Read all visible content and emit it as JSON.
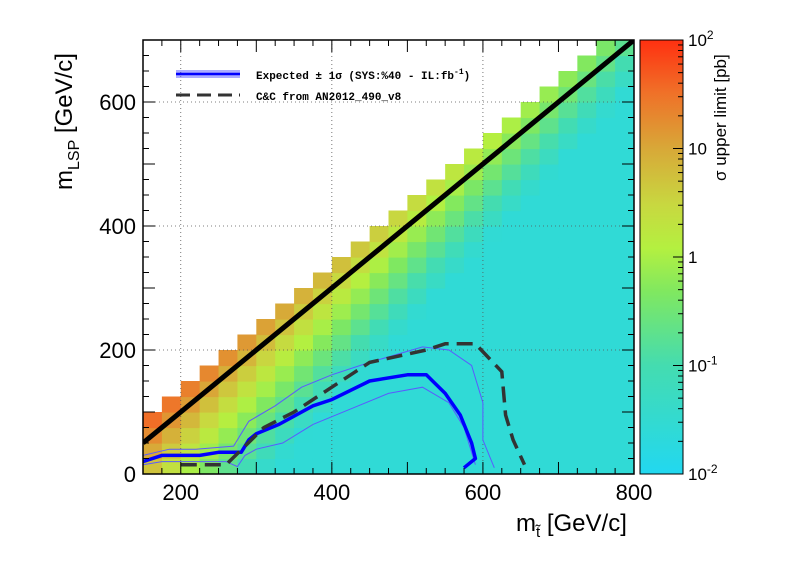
{
  "chart_data": {
    "type": "heatmap",
    "xlabel": "m",
    "xlabel_sub": "t̃",
    "xlabel_unit": " [GeV/c]",
    "ylabel": "m",
    "ylabel_sub": "LSP",
    "ylabel_unit": " [GeV/c]",
    "zlabel": "σ upper limit [pb]",
    "xlim": [
      150,
      800
    ],
    "ylim": [
      0,
      700
    ],
    "zlim": [
      0.01,
      100
    ],
    "zscale": "log",
    "x_ticks": [
      "200",
      "400",
      "600",
      "800"
    ],
    "y_ticks": [
      "0",
      "200",
      "400",
      "600"
    ],
    "z_ticks": [
      {
        "base": "10",
        "exp": "2",
        "value": 100
      },
      {
        "base": "10",
        "exp": "",
        "value": 10
      },
      {
        "base": "1",
        "exp": "",
        "value": 1
      },
      {
        "base": "10",
        "exp": "-1",
        "value": 0.1
      },
      {
        "base": "10",
        "exp": "-2",
        "value": 0.01
      }
    ],
    "grid": true,
    "legend_position": "top-left",
    "legend": [
      {
        "label": "Expected ± 1σ (SYS:%40 - IL:fb",
        "label_sup": "-1",
        "label_end": ")",
        "color": "#0000ff",
        "style": "solid-with-band"
      },
      {
        "label": "C&C from AN2012_490_v8",
        "color": "#333333",
        "style": "dashed"
      }
    ],
    "diagonal": {
      "from": [
        150,
        50
      ],
      "to": [
        800,
        700
      ],
      "color": "#000000"
    },
    "expected": [
      [
        150,
        20
      ],
      [
        175,
        30
      ],
      [
        225,
        30
      ],
      [
        250,
        35
      ],
      [
        280,
        35
      ],
      [
        290,
        55
      ],
      [
        300,
        65
      ],
      [
        330,
        80
      ],
      [
        375,
        110
      ],
      [
        400,
        120
      ],
      [
        450,
        150
      ],
      [
        500,
        160
      ],
      [
        525,
        160
      ],
      [
        550,
        130
      ],
      [
        570,
        95
      ],
      [
        585,
        50
      ],
      [
        590,
        25
      ],
      [
        575,
        10
      ]
    ],
    "expected_plus": [
      [
        150,
        15
      ],
      [
        175,
        20
      ],
      [
        225,
        20
      ],
      [
        260,
        20
      ],
      [
        275,
        12
      ],
      [
        285,
        30
      ],
      [
        300,
        40
      ],
      [
        335,
        50
      ],
      [
        375,
        80
      ],
      [
        425,
        105
      ],
      [
        475,
        130
      ],
      [
        520,
        140
      ],
      [
        555,
        115
      ],
      [
        575,
        75
      ],
      [
        590,
        15
      ]
    ],
    "expected_minus": [
      [
        150,
        30
      ],
      [
        185,
        40
      ],
      [
        220,
        40
      ],
      [
        270,
        45
      ],
      [
        290,
        85
      ],
      [
        325,
        110
      ],
      [
        360,
        140
      ],
      [
        400,
        160
      ],
      [
        450,
        180
      ],
      [
        520,
        205
      ],
      [
        555,
        200
      ],
      [
        585,
        175
      ],
      [
        600,
        115
      ],
      [
        600,
        55
      ],
      [
        615,
        10
      ]
    ],
    "candc": [
      [
        200,
        15
      ],
      [
        260,
        15
      ],
      [
        285,
        45
      ],
      [
        310,
        75
      ],
      [
        350,
        100
      ],
      [
        400,
        140
      ],
      [
        450,
        180
      ],
      [
        525,
        200
      ],
      [
        550,
        210
      ],
      [
        590,
        210
      ],
      [
        625,
        165
      ],
      [
        630,
        95
      ],
      [
        640,
        55
      ],
      [
        655,
        15
      ]
    ],
    "line_colors": {
      "expected": "#0000ff",
      "band": "#5a5aff",
      "candc": "#333333"
    }
  }
}
